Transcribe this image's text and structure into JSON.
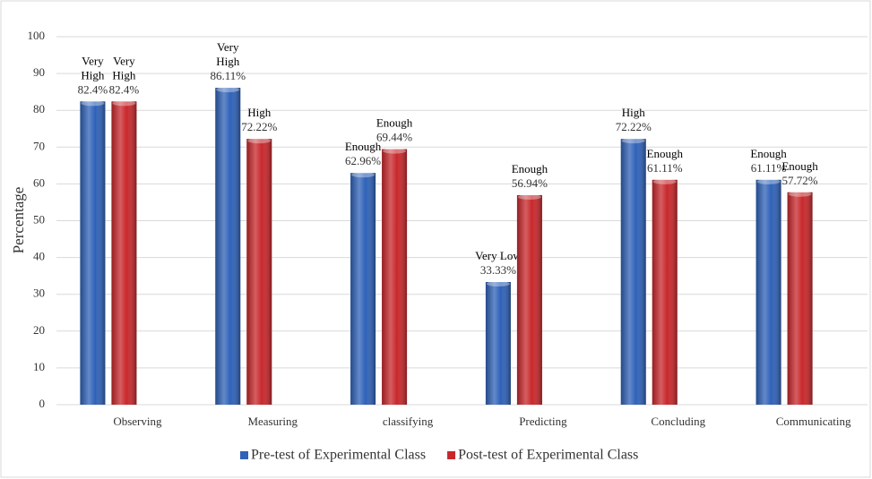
{
  "chart_data": {
    "type": "bar",
    "y_label": "Percentage",
    "categories": [
      "Observing",
      "Measuring",
      "classifying",
      "Predicting",
      "Concluding",
      "Communicating"
    ],
    "series": [
      {
        "name": "Pre-test of Experimental Class",
        "color": "#2f62b8",
        "values": [
          82.4,
          86.11,
          62.96,
          33.33,
          72.22,
          61.11
        ],
        "value_labels": [
          "82.4%",
          "86.11%",
          "62.96%",
          "33.33%",
          "72.22%",
          "61.11%"
        ],
        "level_labels": [
          "Very High",
          "Very High",
          "Enough",
          "Very Low",
          "High",
          "Enough"
        ]
      },
      {
        "name": "Post-test of Experimental Class",
        "color": "#c8282c",
        "values": [
          82.4,
          72.22,
          69.44,
          56.94,
          61.11,
          57.72
        ],
        "value_labels": [
          "82.4%",
          "72.22%",
          "69.44%",
          "56.94%",
          "61.11%",
          "57.72%"
        ],
        "level_labels": [
          "Very High",
          "High",
          "Enough",
          "Enough",
          "Enough",
          "Enough"
        ]
      }
    ],
    "ylim": [
      0,
      100
    ],
    "yticks": [
      0,
      10,
      20,
      30,
      40,
      50,
      60,
      70,
      80,
      90,
      100
    ],
    "grid": true,
    "legend": "bottom"
  }
}
